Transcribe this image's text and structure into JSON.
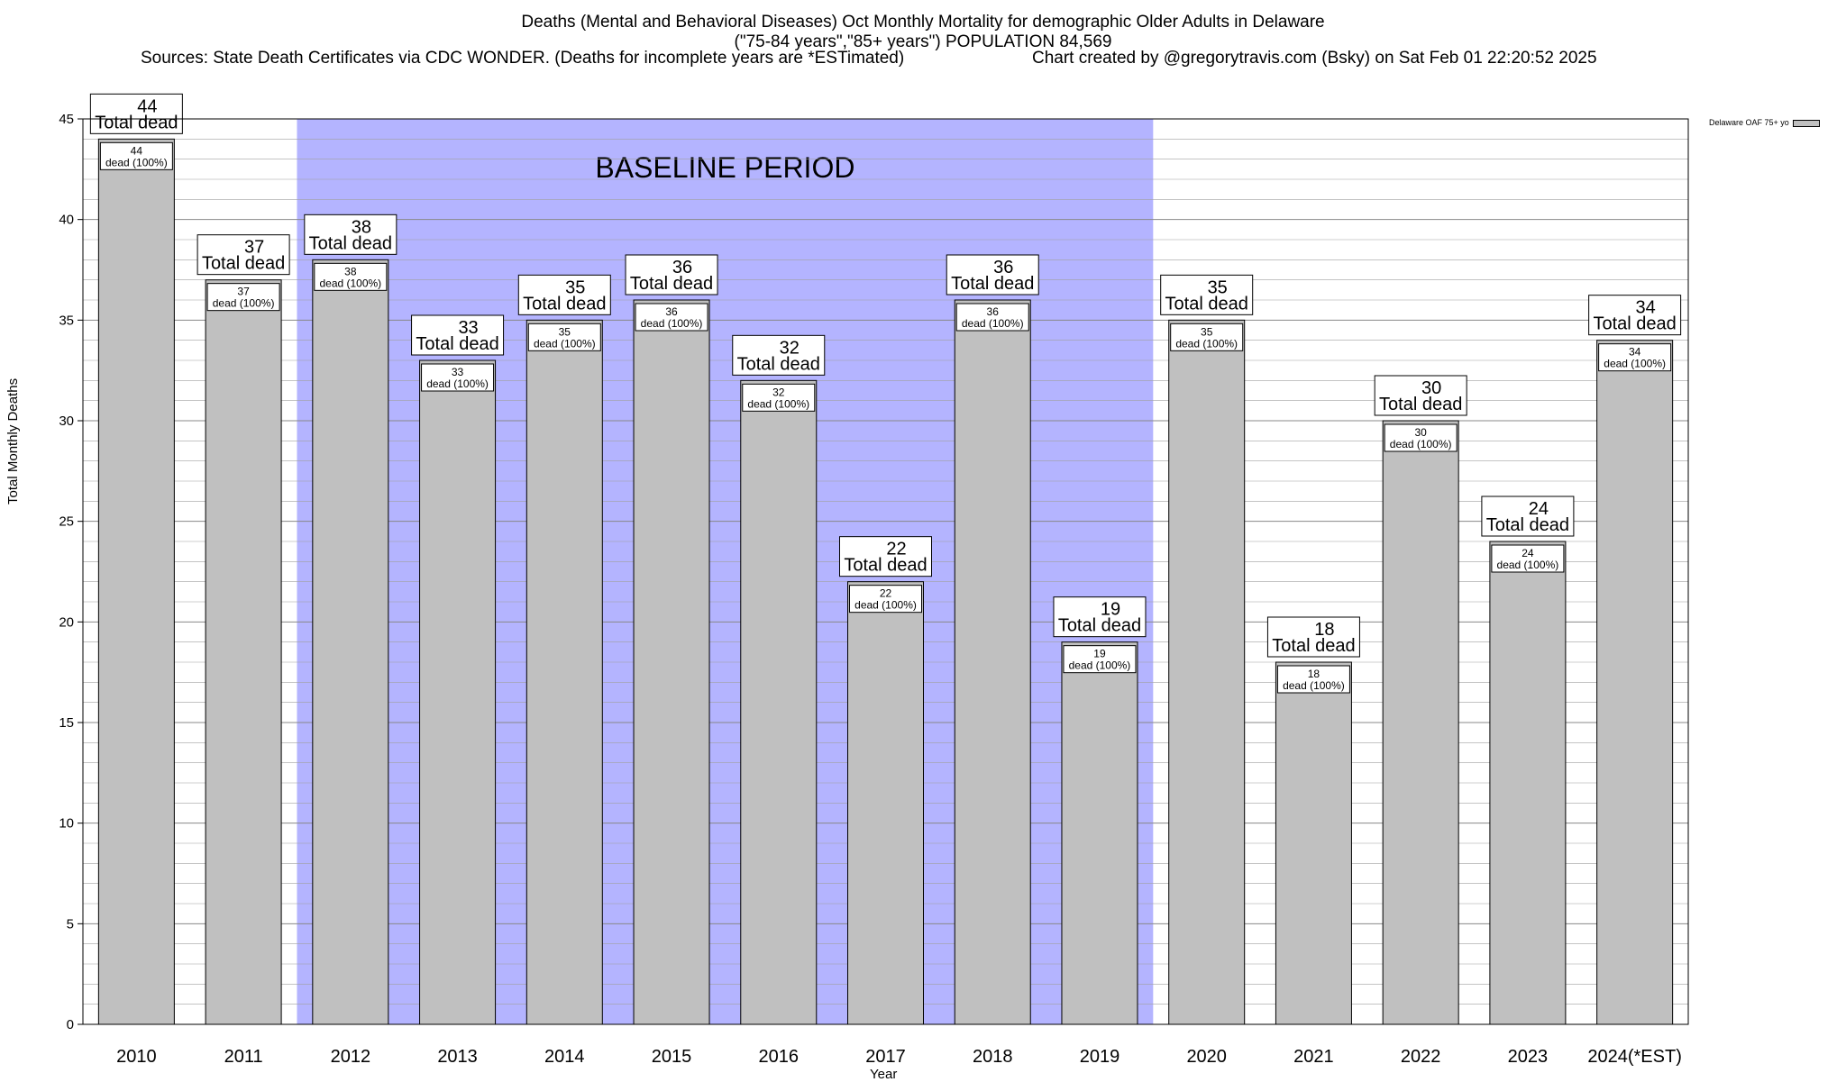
{
  "header": {
    "title_line1": "Deaths (Mental and Behavioral Diseases) Oct Monthly Mortality for demographic Older Adults in Delaware",
    "title_line2": "(\"75-84 years\",\"85+ years\") POPULATION 84,569",
    "sources": "Sources: State Death Certificates via CDC WONDER. (Deaths for incomplete years are *ESTimated)",
    "credit": "Chart created by @gregorytravis.com (Bsky) on Sat Feb 01 22:20:52 2025"
  },
  "colors": {
    "bar_fill": "#c0c0c0",
    "baseline_fill": "#b4b4ff",
    "grid": "#a0a0a0"
  },
  "chart_data": {
    "type": "bar",
    "xlabel": "Year",
    "ylabel": "Total Monthly Deaths",
    "ylim": [
      0,
      45
    ],
    "y_major_step": 5,
    "y_minor_step": 1,
    "categories": [
      "2010",
      "2011",
      "2012",
      "2013",
      "2014",
      "2015",
      "2016",
      "2017",
      "2018",
      "2019",
      "2020",
      "2021",
      "2022",
      "2023",
      "2024(*EST)"
    ],
    "series": [
      {
        "name": "Delaware OAF 75+ yo",
        "values": [
          44,
          37,
          38,
          33,
          35,
          36,
          32,
          22,
          36,
          19,
          35,
          18,
          30,
          24,
          34
        ]
      }
    ],
    "top_label_text": "Total dead",
    "inner_label_text": "dead (100%)",
    "baseline": {
      "label": "BASELINE PERIOD",
      "start_category": "2012",
      "end_category": "2019"
    },
    "legend_position": "top-right",
    "grid": true
  }
}
